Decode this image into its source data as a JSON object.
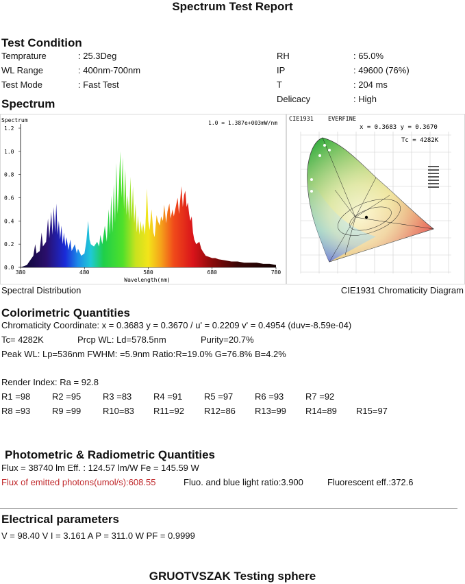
{
  "title": "Spectrum Test Report",
  "test_condition": {
    "heading": "Test Condition",
    "left": [
      {
        "label": "Temprature",
        "value": ": 25.3Deg"
      },
      {
        "label": "WL Range",
        "value": ": 400nm-700nm"
      },
      {
        "label": "Test Mode",
        "value": ": Fast Test"
      }
    ],
    "right": [
      {
        "label": "RH",
        "value": ": 65.0%"
      },
      {
        "label": "IP",
        "value": ": 49600 (76%)"
      },
      {
        "label": "T",
        "value": ": 204 ms"
      },
      {
        "label": "Delicacy",
        "value": ": High"
      }
    ]
  },
  "spectrum": {
    "heading": "Spectrum",
    "caption_left": "Spectral Distribution",
    "caption_right": "CIE1931 Chromaticity Diagram"
  },
  "chart_data": [
    {
      "type": "area",
      "title": "Spectrum",
      "annotation": "1.0 = 1.387e+003mW/nm",
      "xlabel": "Wavelength(nm)",
      "ylabel": "",
      "xlim": [
        380,
        780
      ],
      "ylim": [
        0,
        1.2
      ],
      "x_ticks": [
        "380",
        "480",
        "580",
        "680",
        "780"
      ],
      "y_ticks": [
        "0.0",
        "0.2",
        "0.4",
        "0.6",
        "0.8",
        "1.0",
        "1.2"
      ],
      "points": [
        [
          380,
          0.0
        ],
        [
          390,
          0.02
        ],
        [
          395,
          0.06
        ],
        [
          400,
          0.1
        ],
        [
          403,
          0.2
        ],
        [
          405,
          0.12
        ],
        [
          410,
          0.14
        ],
        [
          413,
          0.3
        ],
        [
          415,
          0.18
        ],
        [
          420,
          0.22
        ],
        [
          423,
          0.42
        ],
        [
          425,
          0.25
        ],
        [
          428,
          0.48
        ],
        [
          430,
          0.28
        ],
        [
          432,
          0.52
        ],
        [
          434,
          0.3
        ],
        [
          436,
          0.55
        ],
        [
          438,
          0.28
        ],
        [
          440,
          0.4
        ],
        [
          442,
          0.24
        ],
        [
          444,
          0.36
        ],
        [
          446,
          0.2
        ],
        [
          448,
          0.3
        ],
        [
          450,
          0.18
        ],
        [
          452,
          0.26
        ],
        [
          455,
          0.15
        ],
        [
          458,
          0.24
        ],
        [
          460,
          0.14
        ],
        [
          465,
          0.2
        ],
        [
          468,
          0.12
        ],
        [
          470,
          0.16
        ],
        [
          475,
          0.1
        ],
        [
          480,
          0.12
        ],
        [
          483,
          0.22
        ],
        [
          486,
          0.4
        ],
        [
          488,
          0.24
        ],
        [
          490,
          0.2
        ],
        [
          495,
          0.18
        ],
        [
          500,
          0.22
        ],
        [
          503,
          0.18
        ],
        [
          505,
          0.28
        ],
        [
          508,
          0.2
        ],
        [
          512,
          0.36
        ],
        [
          515,
          0.22
        ],
        [
          518,
          0.5
        ],
        [
          520,
          0.28
        ],
        [
          522,
          0.62
        ],
        [
          524,
          0.3
        ],
        [
          526,
          0.72
        ],
        [
          528,
          0.38
        ],
        [
          530,
          0.9
        ],
        [
          532,
          0.46
        ],
        [
          534,
          0.68
        ],
        [
          536,
          1.0
        ],
        [
          538,
          0.6
        ],
        [
          540,
          0.95
        ],
        [
          542,
          0.5
        ],
        [
          544,
          0.85
        ],
        [
          546,
          0.45
        ],
        [
          548,
          0.62
        ],
        [
          550,
          0.4
        ],
        [
          552,
          0.78
        ],
        [
          554,
          0.42
        ],
        [
          556,
          0.7
        ],
        [
          558,
          0.38
        ],
        [
          560,
          0.55
        ],
        [
          562,
          0.3
        ],
        [
          564,
          0.45
        ],
        [
          566,
          0.28
        ],
        [
          568,
          0.4
        ],
        [
          570,
          0.3
        ],
        [
          572,
          0.38
        ],
        [
          575,
          0.28
        ],
        [
          578,
          0.68
        ],
        [
          580,
          0.4
        ],
        [
          582,
          0.32
        ],
        [
          585,
          0.5
        ],
        [
          588,
          0.3
        ],
        [
          590,
          0.26
        ],
        [
          593,
          0.45
        ],
        [
          595,
          0.4
        ],
        [
          598,
          0.36
        ],
        [
          600,
          0.44
        ],
        [
          603,
          0.4
        ],
        [
          605,
          0.54
        ],
        [
          608,
          0.38
        ],
        [
          610,
          0.48
        ],
        [
          613,
          0.55
        ],
        [
          615,
          0.42
        ],
        [
          618,
          0.5
        ],
        [
          620,
          0.44
        ],
        [
          623,
          0.52
        ],
        [
          626,
          0.6
        ],
        [
          628,
          0.46
        ],
        [
          630,
          0.58
        ],
        [
          632,
          0.7
        ],
        [
          634,
          0.52
        ],
        [
          636,
          0.62
        ],
        [
          638,
          0.66
        ],
        [
          640,
          0.52
        ],
        [
          642,
          0.56
        ],
        [
          644,
          0.46
        ],
        [
          646,
          0.4
        ],
        [
          648,
          0.44
        ],
        [
          650,
          0.3
        ],
        [
          652,
          0.24
        ],
        [
          655,
          0.2
        ],
        [
          660,
          0.22
        ],
        [
          663,
          0.16
        ],
        [
          665,
          0.14
        ],
        [
          670,
          0.1
        ],
        [
          675,
          0.09
        ],
        [
          680,
          0.08
        ],
        [
          685,
          0.08
        ],
        [
          690,
          0.07
        ],
        [
          700,
          0.06
        ],
        [
          710,
          0.05
        ],
        [
          720,
          0.05
        ],
        [
          730,
          0.04
        ],
        [
          740,
          0.04
        ],
        [
          750,
          0.04
        ],
        [
          760,
          0.03
        ],
        [
          770,
          0.03
        ],
        [
          780,
          0.02
        ]
      ]
    },
    {
      "type": "scatter",
      "title": "CIE1931",
      "header_brand": "EVERFINE",
      "coordinate_text": "x = 0.3683 y = 0.3670",
      "tc_text": "Tc = 4282K",
      "x": [
        0.3683
      ],
      "y": [
        0.367
      ]
    }
  ],
  "colorimetric": {
    "heading": "Colorimetric Quantities",
    "line1": "Chromaticity Coordinate: x = 0.3683 y = 0.3670 / u' = 0.2209 v' = 0.4954 (duv=-8.59e-04)",
    "tc": "Tc=  4282K",
    "prcp": "Prcp WL:    Ld=578.5nm",
    "purity": "Purity=20.7%",
    "peak": "Peak WL:  Lp=536nm  FWHM:   =5.9nm  Ratio:R=19.0% G=76.8% B=4.2%",
    "render_index": "Render Index: Ra = 92.8",
    "r_row1": [
      "R1 =98",
      "R2 =95",
      "R3 =83",
      "R4 =91",
      "R5 =97",
      "R6 =93",
      "R7 =92"
    ],
    "r_row2": [
      "R8 =93",
      "R9 =99",
      "R10=83",
      "R11=92",
      "R12=86",
      "R13=99",
      "R14=89",
      "R15=97"
    ]
  },
  "photometric": {
    "heading": "Photometric & Radiometric Quantities",
    "line1": "Flux  = 38740 lm    Eff. : 124.57 lm/W   Fe  = 145.59 W",
    "photons": "Flux of emitted photons(umol/s):608.55",
    "fluo": "Fluo. and blue light ratio:3.900",
    "fluor_eff": "Fluorescent eff.:372.6"
  },
  "electrical": {
    "heading": "Electrical parameters",
    "line": "V = 98.40 V     I = 3.161  A     P = 311.0 W PF = 0.9999"
  },
  "footer": "GRUOTVSZAK Testing sphere"
}
